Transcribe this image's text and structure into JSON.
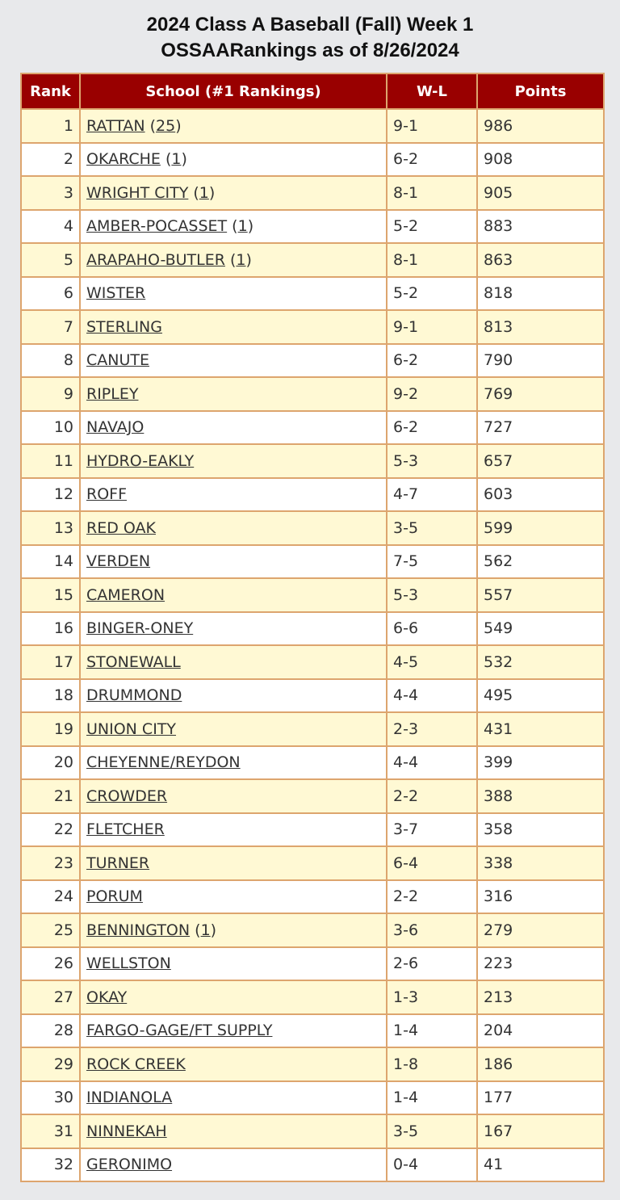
{
  "title_line1": "2024 Class A Baseball (Fall) Week 1",
  "title_line2": "OSSAARankings as of 8/26/2024",
  "colors": {
    "header_bg": "#990000",
    "odd_row_bg": "#fff9d4",
    "border": "#dda56e",
    "page_bg": "#e8e9eb"
  },
  "columns": [
    "Rank",
    "School (#1 Rankings)",
    "W-L",
    "Points"
  ],
  "rows": [
    {
      "rank": "1",
      "school": "RATTAN",
      "votes": "25",
      "wl": "9-1",
      "points": "986"
    },
    {
      "rank": "2",
      "school": "OKARCHE",
      "votes": "1",
      "wl": "6-2",
      "points": "908"
    },
    {
      "rank": "3",
      "school": "WRIGHT CITY",
      "votes": "1",
      "wl": "8-1",
      "points": "905"
    },
    {
      "rank": "4",
      "school": "AMBER-POCASSET",
      "votes": "1",
      "wl": "5-2",
      "points": "883"
    },
    {
      "rank": "5",
      "school": "ARAPAHO-BUTLER",
      "votes": "1",
      "wl": "8-1",
      "points": "863"
    },
    {
      "rank": "6",
      "school": "WISTER",
      "wl": "5-2",
      "points": "818"
    },
    {
      "rank": "7",
      "school": "STERLING",
      "wl": "9-1",
      "points": "813"
    },
    {
      "rank": "8",
      "school": "CANUTE",
      "wl": "6-2",
      "points": "790"
    },
    {
      "rank": "9",
      "school": "RIPLEY",
      "wl": "9-2",
      "points": "769"
    },
    {
      "rank": "10",
      "school": "NAVAJO",
      "wl": "6-2",
      "points": "727"
    },
    {
      "rank": "11",
      "school": "HYDRO-EAKLY",
      "wl": "5-3",
      "points": "657"
    },
    {
      "rank": "12",
      "school": "ROFF",
      "wl": "4-7",
      "points": "603"
    },
    {
      "rank": "13",
      "school": "RED OAK",
      "wl": "3-5",
      "points": "599"
    },
    {
      "rank": "14",
      "school": "VERDEN",
      "wl": "7-5",
      "points": "562"
    },
    {
      "rank": "15",
      "school": "CAMERON",
      "wl": "5-3",
      "points": "557"
    },
    {
      "rank": "16",
      "school": "BINGER-ONEY",
      "wl": "6-6",
      "points": "549"
    },
    {
      "rank": "17",
      "school": "STONEWALL",
      "wl": "4-5",
      "points": "532"
    },
    {
      "rank": "18",
      "school": "DRUMMOND",
      "wl": "4-4",
      "points": "495"
    },
    {
      "rank": "19",
      "school": "UNION CITY",
      "wl": "2-3",
      "points": "431"
    },
    {
      "rank": "20",
      "school": "CHEYENNE/REYDON",
      "wl": "4-4",
      "points": "399"
    },
    {
      "rank": "21",
      "school": "CROWDER",
      "wl": "2-2",
      "points": "388"
    },
    {
      "rank": "22",
      "school": "FLETCHER",
      "wl": "3-7",
      "points": "358"
    },
    {
      "rank": "23",
      "school": "TURNER",
      "wl": "6-4",
      "points": "338"
    },
    {
      "rank": "24",
      "school": "PORUM",
      "wl": "2-2",
      "points": "316"
    },
    {
      "rank": "25",
      "school": "BENNINGTON",
      "votes": "1",
      "wl": "3-6",
      "points": "279"
    },
    {
      "rank": "26",
      "school": "WELLSTON",
      "wl": "2-6",
      "points": "223"
    },
    {
      "rank": "27",
      "school": "OKAY",
      "wl": "1-3",
      "points": "213"
    },
    {
      "rank": "28",
      "school": "FARGO-GAGE/FT SUPPLY",
      "wl": "1-4",
      "points": "204"
    },
    {
      "rank": "29",
      "school": "ROCK CREEK",
      "wl": "1-8",
      "points": "186"
    },
    {
      "rank": "30",
      "school": "INDIANOLA",
      "wl": "1-4",
      "points": "177"
    },
    {
      "rank": "31",
      "school": "NINNEKAH",
      "wl": "3-5",
      "points": "167"
    },
    {
      "rank": "32",
      "school": "GERONIMO",
      "wl": "0-4",
      "points": "41"
    }
  ]
}
